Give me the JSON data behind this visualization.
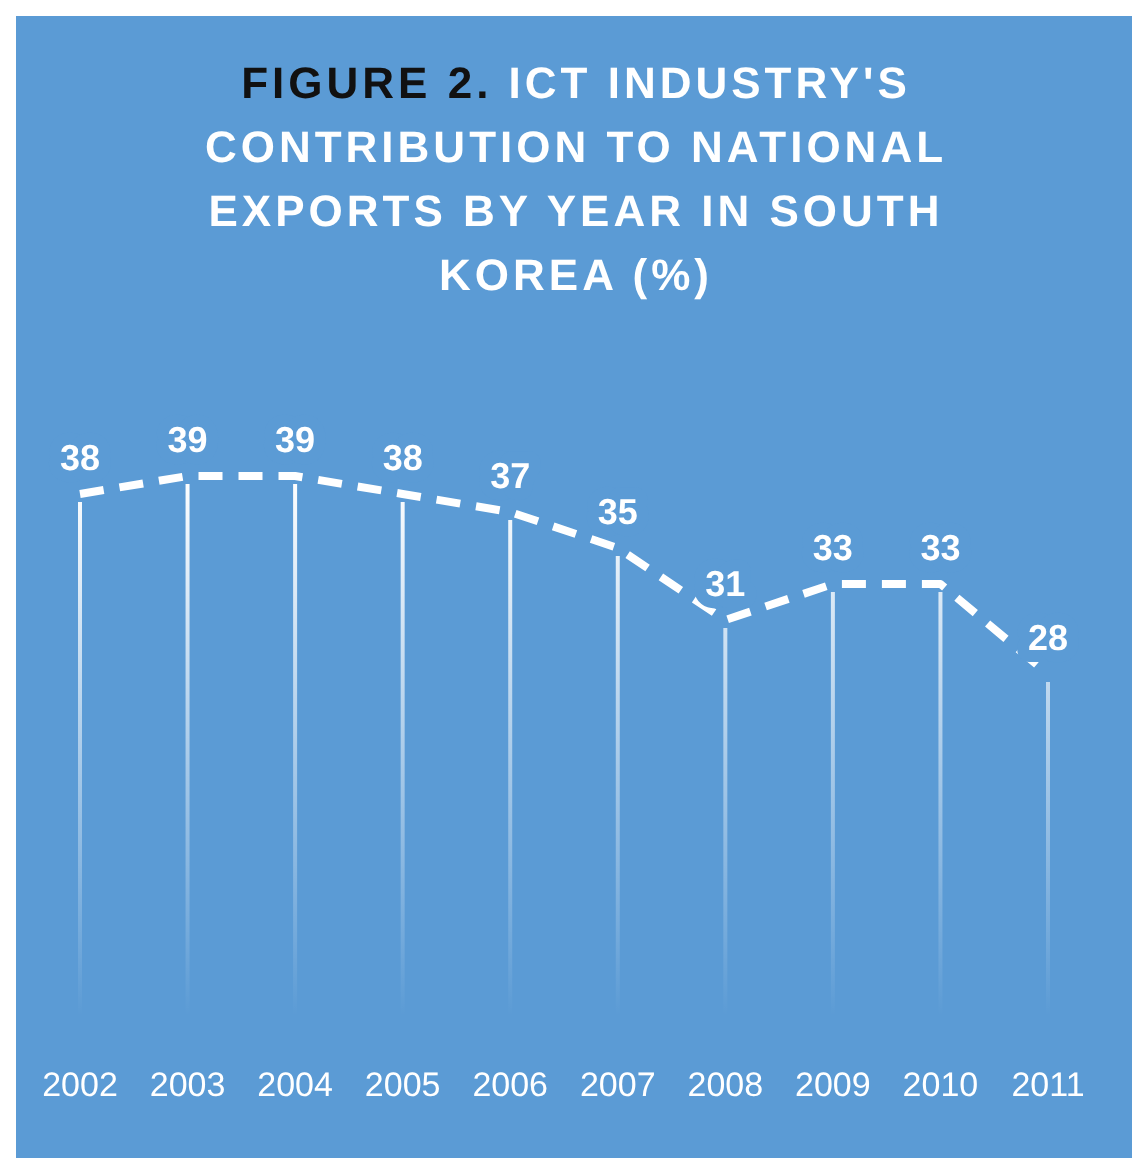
{
  "chart_data": {
    "type": "line",
    "title": "FIGURE 2. ICT INDUSTRY'S CONTRIBUTION TO NATIONAL EXPORTS BY YEAR IN SOUTH KOREA (%)",
    "categories": [
      "2002",
      "2003",
      "2004",
      "2005",
      "2006",
      "2007",
      "2008",
      "2009",
      "2010",
      "2011"
    ],
    "values": [
      38,
      39,
      39,
      38,
      37,
      35,
      31,
      33,
      33,
      28
    ],
    "color": "#ffffff",
    "line_style": "dashed",
    "data_labels": true,
    "grid": "x"
  }
}
